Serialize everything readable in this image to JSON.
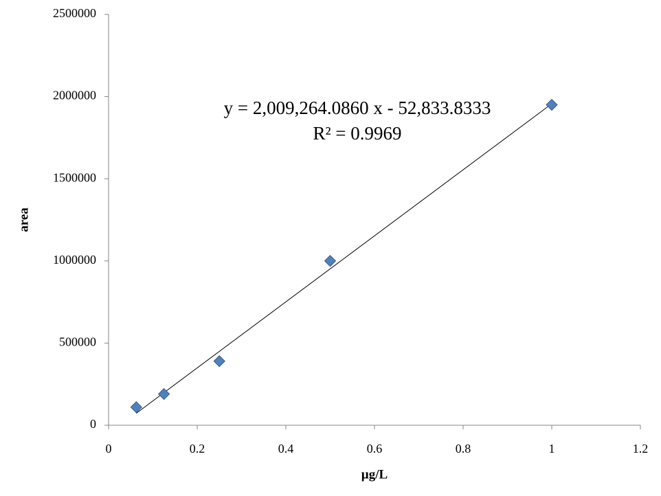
{
  "chart_data": {
    "type": "scatter",
    "x_label": "µg/L",
    "y_label": "area",
    "series": [
      {
        "name": "area",
        "color": "#4f81bd",
        "x": [
          0.0625,
          0.125,
          0.25,
          0.5,
          1
        ],
        "values": [
          110000,
          190000,
          390000,
          1000000,
          1950000
        ]
      }
    ],
    "trendline": {
      "equation": "y = 2,009,264.0860 x - 52,833.8333",
      "r_squared": "R² = 0.9969",
      "slope": 2009264.086,
      "intercept": -52833.8333
    },
    "xlim": [
      0,
      1.2
    ],
    "xticks": [
      0,
      0.2,
      0.4,
      0.6,
      0.8,
      1,
      1.2
    ],
    "ylim": [
      0,
      2500000
    ],
    "yticks": [
      0,
      500000,
      1000000,
      1500000,
      2000000,
      2500000
    ],
    "grid": false
  }
}
